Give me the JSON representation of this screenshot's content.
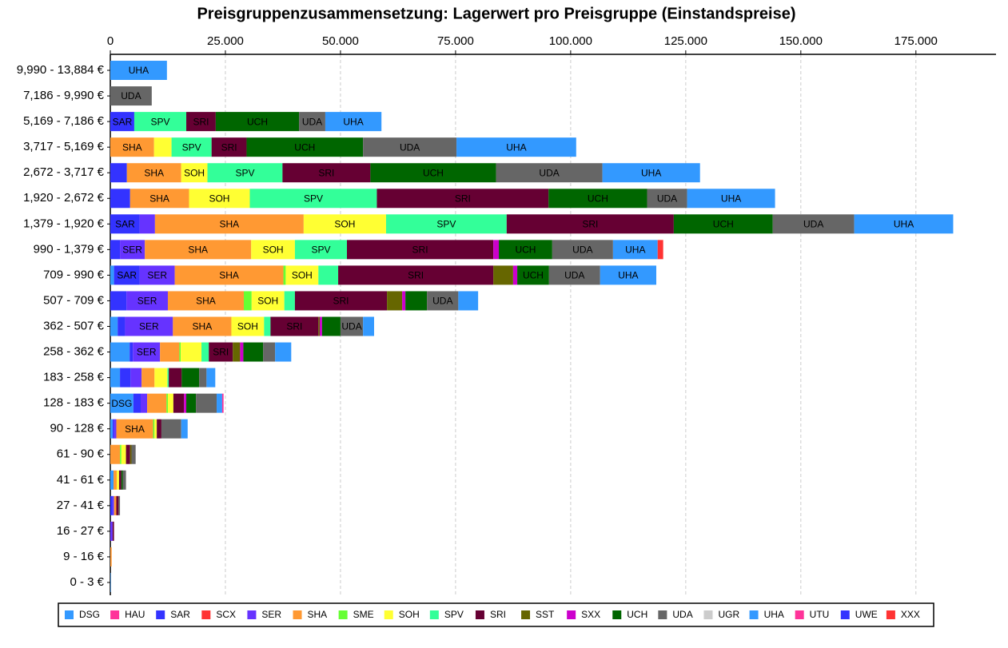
{
  "chart_data": {
    "type": "stacked-barh",
    "title": "Preisgruppenzusammensetzung: Lagerwert pro Preisgruppe (Einstandspreise)",
    "categories": [
      "9,990 - 13,884 €",
      "7,186 - 9,990 €",
      "5,169 - 7,186 €",
      "3,717 - 5,169 €",
      "2,672 - 3,717 €",
      "1,920 - 2,672 €",
      "1,379 - 1,920 €",
      "990 - 1,379 €",
      "709 - 990 €",
      "507 - 709 €",
      "362 - 507 €",
      "258 - 362 €",
      "183 - 258 €",
      "128 - 183 €",
      "90 - 128 €",
      "61 - 90 €",
      "41 - 61 €",
      "27 - 41 €",
      "16 - 27 €",
      "9 - 16 €",
      "0 - 3 €"
    ],
    "series": [
      {
        "name": "DSG",
        "color": "#3399ff",
        "values": [
          0,
          0,
          0,
          0,
          0,
          0,
          0,
          0,
          800,
          0,
          1600,
          4200,
          2100,
          5000,
          500,
          0,
          700,
          0,
          0,
          0,
          100
        ]
      },
      {
        "name": "HAU",
        "color": "#ff3399",
        "values": [
          0,
          0,
          0,
          0,
          0,
          0,
          0,
          0,
          0,
          0,
          0,
          0,
          0,
          0,
          0,
          0,
          0,
          0,
          0,
          0,
          0
        ]
      },
      {
        "name": "SAR",
        "color": "#3333ff",
        "values": [
          0,
          0,
          5200,
          0,
          3600,
          4300,
          6400,
          2100,
          5600,
          3500,
          1600,
          700,
          2300,
          1600,
          300,
          0,
          0,
          500,
          0,
          0,
          0
        ]
      },
      {
        "name": "SCX",
        "color": "#ff3333",
        "values": [
          0,
          0,
          0,
          0,
          0,
          0,
          0,
          0,
          0,
          0,
          0,
          0,
          0,
          0,
          0,
          0,
          0,
          0,
          0,
          0,
          0
        ]
      },
      {
        "name": "SER",
        "color": "#6633ff",
        "values": [
          0,
          0,
          0,
          0,
          0,
          0,
          3300,
          5400,
          7600,
          9000,
          10400,
          5900,
          2400,
          1400,
          500,
          0,
          0,
          300,
          500,
          0,
          0
        ]
      },
      {
        "name": "SHA",
        "color": "#ff9933",
        "values": [
          0,
          0,
          0,
          9500,
          11800,
          12800,
          32300,
          23100,
          23600,
          16500,
          12700,
          4200,
          2800,
          4200,
          8000,
          2100,
          700,
          500,
          0,
          300,
          0
        ]
      },
      {
        "name": "SME",
        "color": "#66ff33",
        "values": [
          0,
          0,
          0,
          0,
          0,
          0,
          0,
          0,
          500,
          1700,
          0,
          300,
          0,
          300,
          300,
          300,
          0,
          0,
          0,
          0,
          0
        ]
      },
      {
        "name": "SOH",
        "color": "#ffff33",
        "values": [
          0,
          0,
          0,
          3800,
          5700,
          13200,
          17900,
          9500,
          7100,
          7100,
          7100,
          4500,
          2800,
          1200,
          500,
          1000,
          500,
          0,
          0,
          0,
          0
        ]
      },
      {
        "name": "SPV",
        "color": "#33ff99",
        "values": [
          0,
          0,
          11300,
          8700,
          16300,
          27600,
          26200,
          11300,
          4300,
          2300,
          1400,
          1600,
          300,
          0,
          0,
          0,
          0,
          0,
          0,
          0,
          0
        ]
      },
      {
        "name": "SRI",
        "color": "#660033",
        "values": [
          0,
          0,
          6400,
          7600,
          19100,
          37300,
          36300,
          31800,
          33700,
          20000,
          10400,
          5200,
          2800,
          2300,
          1000,
          900,
          500,
          500,
          300,
          0,
          0
        ]
      },
      {
        "name": "SST",
        "color": "#666600",
        "values": [
          0,
          0,
          0,
          0,
          0,
          0,
          0,
          0,
          4300,
          3300,
          300,
          1600,
          0,
          0,
          0,
          300,
          0,
          0,
          0,
          0,
          0
        ]
      },
      {
        "name": "SXX",
        "color": "#cc00cc",
        "values": [
          0,
          0,
          0,
          0,
          0,
          0,
          0,
          1200,
          900,
          700,
          500,
          700,
          0,
          500,
          0,
          0,
          0,
          0,
          0,
          0,
          0
        ]
      },
      {
        "name": "UCH",
        "color": "#006600",
        "values": [
          0,
          0,
          18100,
          25300,
          27300,
          21400,
          21500,
          11600,
          6900,
          4700,
          4000,
          4300,
          3800,
          2100,
          0,
          0,
          300,
          0,
          0,
          0,
          0
        ]
      },
      {
        "name": "UDA",
        "color": "#666666",
        "values": [
          0,
          9000,
          5700,
          20300,
          23100,
          8700,
          17700,
          13200,
          11100,
          6800,
          4900,
          2600,
          1600,
          4500,
          4300,
          900,
          700,
          300,
          0,
          0,
          0
        ]
      },
      {
        "name": "UGR",
        "color": "#cccccc",
        "values": [
          0,
          0,
          0,
          0,
          0,
          0,
          0,
          0,
          0,
          0,
          0,
          0,
          0,
          0,
          0,
          0,
          0,
          0,
          0,
          0,
          0
        ]
      },
      {
        "name": "UHA",
        "color": "#3399ff",
        "values": [
          12300,
          0,
          12200,
          26000,
          21200,
          19100,
          21500,
          9700,
          12200,
          4300,
          2400,
          3500,
          1900,
          1200,
          1400,
          0,
          0,
          0,
          0,
          0,
          0
        ]
      },
      {
        "name": "UTU",
        "color": "#ff3399",
        "values": [
          0,
          0,
          0,
          0,
          0,
          0,
          0,
          0,
          0,
          0,
          0,
          0,
          0,
          300,
          0,
          0,
          0,
          0,
          0,
          0,
          0
        ]
      },
      {
        "name": "UWE",
        "color": "#3333ff",
        "values": [
          0,
          0,
          0,
          0,
          0,
          0,
          0,
          0,
          0,
          0,
          0,
          0,
          0,
          0,
          0,
          0,
          0,
          0,
          0,
          0,
          0
        ]
      },
      {
        "name": "XXX",
        "color": "#ff3333",
        "values": [
          0,
          0,
          0,
          0,
          0,
          0,
          0,
          1200,
          0,
          0,
          0,
          0,
          0,
          0,
          0,
          0,
          0,
          0,
          0,
          0,
          0
        ]
      }
    ],
    "xlim": [
      0,
      192400
    ],
    "xticks": [
      0,
      {
        "value": 25000,
        "label": "25.000"
      },
      {
        "value": 50000,
        "label": "50.000"
      },
      {
        "value": 75000,
        "label": "75.000"
      },
      {
        "value": 100000,
        "label": "100.000"
      },
      {
        "value": 125000,
        "label": "125.000"
      },
      {
        "value": 150000,
        "label": "150.000"
      },
      {
        "value": 175000,
        "label": "175.000"
      }
    ],
    "grid": true
  }
}
